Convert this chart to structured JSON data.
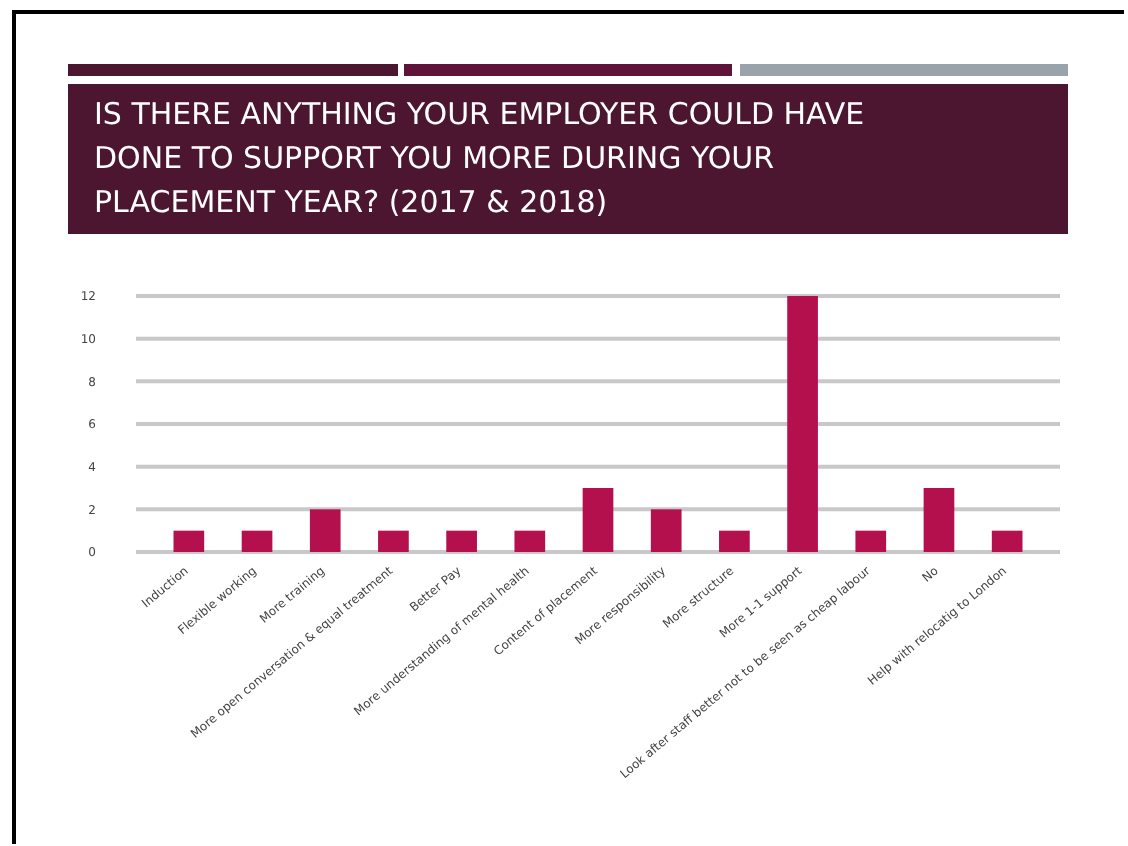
{
  "chart_data": {
    "type": "bar",
    "title": "IS THERE ANYTHING YOUR EMPLOYER COULD HAVE DONE TO SUPPORT YOU MORE DURING YOUR PLACEMENT YEAR? (2017 & 2018)",
    "categories": [
      "Induction",
      "Flexible working",
      "More training",
      "More open conversation & equal treatment",
      "Better Pay",
      "More understanding of mental health",
      "Content of placement",
      "More responsibility",
      "More structure",
      "More 1-1 support",
      "Look after staff better not to be seen as cheap labour",
      "No",
      "Help with relocatig to London"
    ],
    "values": [
      1,
      1,
      2,
      1,
      1,
      1,
      3,
      2,
      1,
      12,
      1,
      3,
      1
    ],
    "color": "#b5104e",
    "ylim": [
      0,
      12
    ],
    "yticks": [
      0,
      2,
      4,
      6,
      8,
      10,
      12
    ],
    "grid": "y"
  }
}
